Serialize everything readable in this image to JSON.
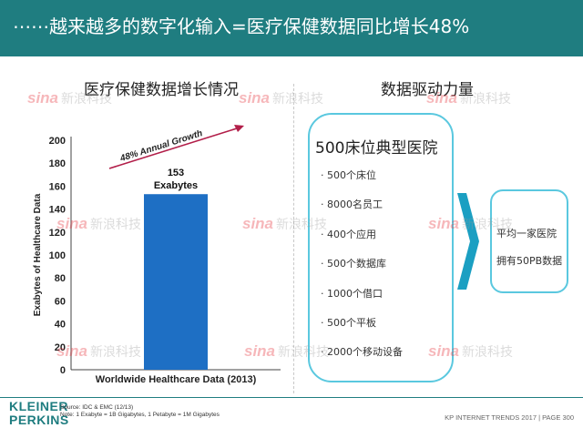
{
  "header": {
    "title": "⋯⋯越来越多的数字化输入=医疗保健数据同比增长48%"
  },
  "left_panel": {
    "title": "医疗保健数据增长情况"
  },
  "chart_data": {
    "type": "bar",
    "categories": [
      "Worldwide Healthcare Data (2013)"
    ],
    "values": [
      153
    ],
    "data_label": [
      "153",
      "Exabytes"
    ],
    "ylabel": "Exabytes of Healthcare Data",
    "xlabel": "Worldwide Healthcare Data (2013)",
    "yticks": [
      0,
      20,
      40,
      60,
      80,
      100,
      120,
      140,
      160,
      180,
      200
    ],
    "ylim": [
      0,
      200
    ],
    "annotation": "48% Annual  Growth",
    "grid": false,
    "colors": {
      "bar": "#1e6fc4",
      "arrow": "#b21e49"
    }
  },
  "right_panel": {
    "title": "数据驱动力量",
    "box_title": "500床位典型医院",
    "items": [
      "· 500个床位",
      "· 8000名员工",
      "· 400个应用",
      "· 500个数据库",
      "· 1000个借口",
      "· 500个平板",
      "· 2000个移动设备"
    ],
    "result": [
      "平均一家医院",
      "拥有50PB数据"
    ]
  },
  "footer": {
    "logo_line1": "KLEINER",
    "logo_line2": "PERKINS",
    "source_line1": "Source: IDC & EMC (12/13)",
    "source_line2": "Note: 1 Exabyte = 1B Gigabytes, 1 Petabyte = 1M Gigabytes",
    "page_info": "KP INTERNET TRENDS 2017  |  PAGE 300"
  },
  "watermark": {
    "brand": "sina",
    "text": "新浪科技"
  },
  "colors": {
    "banner": "#1f7d80",
    "box_border": "#5ac8df",
    "arrow_fill": "#1b9fc2",
    "watermark_red": "#e8333c"
  }
}
